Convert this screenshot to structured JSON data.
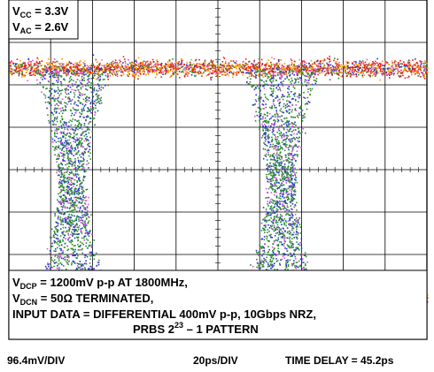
{
  "chart_data": {
    "type": "eye_diagram",
    "title": "",
    "annotations": {
      "top_left": {
        "line1": {
          "prefix": "V",
          "sub": "CC",
          "rest": " = 3.3V"
        },
        "line2": {
          "prefix": "V",
          "sub": "AC",
          "rest": " = 2.6V"
        }
      },
      "bottom": {
        "line1": {
          "prefix": "V",
          "sub": "DCP",
          "rest": " = 1200mV p-p AT 1800MHz,"
        },
        "line2": {
          "prefix": "V",
          "sub": "DCN",
          "rest": " = 50Ω TERMINATED,"
        },
        "line3": "INPUT DATA = DIFFERENTIAL 400mV p-p, 10Gbps NRZ,",
        "line4": {
          "prefix": "PRBS 2",
          "sup": "23",
          "rest": " – 1 PATTERN"
        }
      }
    },
    "scales": {
      "vertical": "96.4mV/DIV",
      "horizontal": "20ps/DIV",
      "time_delay": "TIME DELAY = 45.2ps"
    },
    "grid": {
      "divisions_x": 10,
      "divisions_y": 8,
      "shown": true
    },
    "eye": {
      "unit_interval_divisions": 5,
      "crossings_at_division": [
        1.5,
        6.5
      ],
      "upper_level_division": 1.6,
      "lower_level_division": 7.1
    },
    "trace_colors": [
      "#e8201a",
      "#f59a00",
      "#2436c8",
      "#2e8f2e",
      "#d74fe0",
      "#ffd400",
      "#8b3a1a"
    ]
  }
}
